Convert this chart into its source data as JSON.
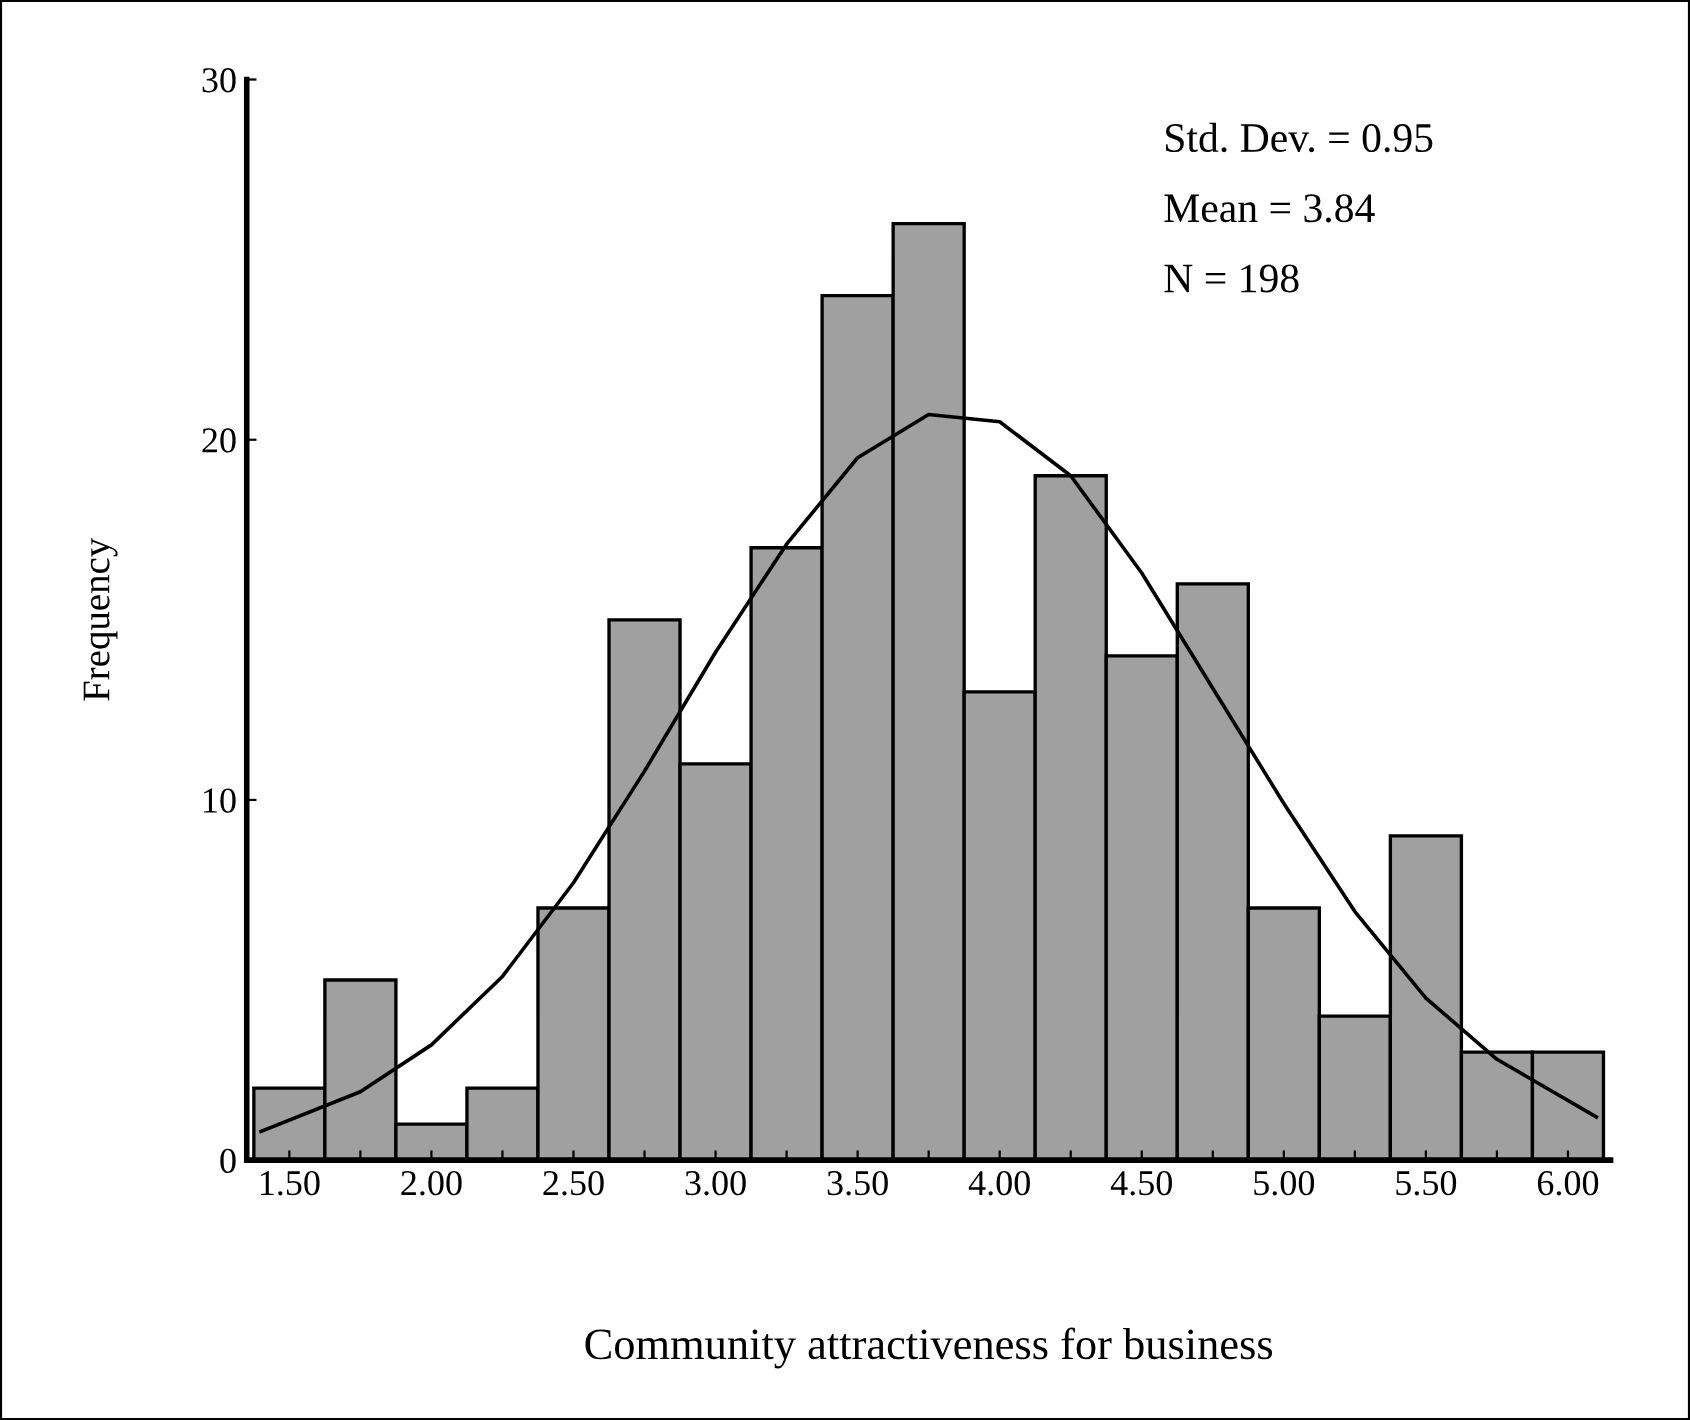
{
  "chart_data": {
    "type": "histogram",
    "xlabel": "Community attractiveness for business",
    "ylabel": "Frequency",
    "bins": [
      1.375,
      1.625,
      1.875,
      2.125,
      2.375,
      2.625,
      2.875,
      3.125,
      3.375,
      3.625,
      3.875,
      4.125,
      4.375,
      4.625,
      4.875,
      5.125,
      5.375,
      5.625,
      5.875,
      6.125
    ],
    "values": [
      2,
      5,
      1,
      2,
      7,
      15,
      11,
      17,
      24,
      26,
      13,
      19,
      14,
      16,
      7,
      4,
      9,
      3,
      3
    ],
    "color": "#a0a0a0",
    "series": [
      {
        "type": "line",
        "color": "#000000",
        "x": [
          1.4,
          1.75,
          2.0,
          2.25,
          2.5,
          2.75,
          3.0,
          3.25,
          3.5,
          3.75,
          4.0,
          4.25,
          4.5,
          4.75,
          5.0,
          5.25,
          5.5,
          5.75,
          6.1
        ],
        "values": [
          0.8,
          1.9,
          3.2,
          5.1,
          7.7,
          10.8,
          14.1,
          17.1,
          19.5,
          20.7,
          20.5,
          19.0,
          16.3,
          13.1,
          9.9,
          6.9,
          4.5,
          2.8,
          1.2
        ]
      }
    ],
    "xlim": [
      1.35,
      6.15
    ],
    "ylim": [
      0,
      30
    ],
    "xticks": [
      {
        "value": 1.5,
        "label": "1.50"
      },
      {
        "value": 1.75,
        "label": null
      },
      {
        "value": 2.0,
        "label": "2.00"
      },
      {
        "value": 2.25,
        "label": null
      },
      {
        "value": 2.5,
        "label": "2.50"
      },
      {
        "value": 2.75,
        "label": null
      },
      {
        "value": 3.0,
        "label": "3.00"
      },
      {
        "value": 3.25,
        "label": null
      },
      {
        "value": 3.5,
        "label": "3.50"
      },
      {
        "value": 3.75,
        "label": null
      },
      {
        "value": 4.0,
        "label": "4.00"
      },
      {
        "value": 4.25,
        "label": null
      },
      {
        "value": 4.5,
        "label": "4.50"
      },
      {
        "value": 4.75,
        "label": null
      },
      {
        "value": 5.0,
        "label": "5.00"
      },
      {
        "value": 5.25,
        "label": null
      },
      {
        "value": 5.5,
        "label": "5.50"
      },
      {
        "value": 5.75,
        "label": null
      },
      {
        "value": 6.0,
        "label": "6.00"
      }
    ],
    "yticks": [
      0,
      10,
      20,
      30
    ],
    "grid": false,
    "legend": false,
    "annotations": [
      "Std. Dev. = 0.95",
      "Mean = 3.84",
      "N = 198"
    ]
  }
}
